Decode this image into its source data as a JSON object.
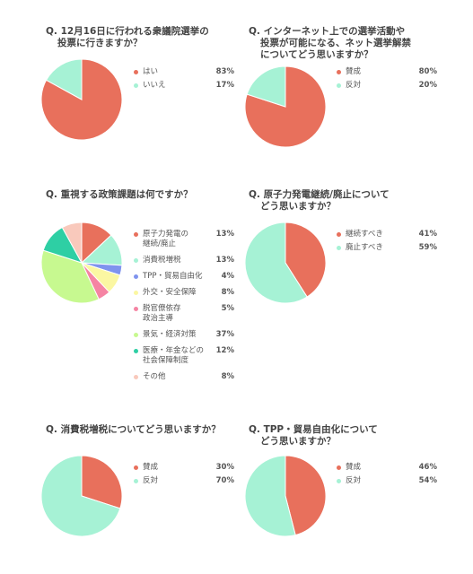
{
  "colors": {
    "red": "#e8705c",
    "mint": "#a6f2d5",
    "blue": "#7f93ee",
    "yellow": "#fbf7a2",
    "pink": "#f584a3",
    "lime": "#c7f990",
    "teal": "#2ecfa4",
    "peach": "#f9c9bc"
  },
  "chart_data": [
    {
      "type": "pie",
      "title_lines": [
        "Q. 12月16日に行われる衆議院選挙の",
        "投票に行きますか？"
      ],
      "slices": [
        {
          "label_lines": [
            "はい"
          ],
          "value": 83,
          "display": "83%",
          "color": "red"
        },
        {
          "label_lines": [
            "いいえ"
          ],
          "value": 17,
          "display": "17%",
          "color": "mint"
        }
      ]
    },
    {
      "type": "pie",
      "title_lines": [
        "Q. インターネット上での選挙活動や",
        "投票が可能になる、ネット選挙解禁",
        "についてどう思いますか？"
      ],
      "slices": [
        {
          "label_lines": [
            "賛成"
          ],
          "value": 80,
          "display": "80%",
          "color": "red"
        },
        {
          "label_lines": [
            "反対"
          ],
          "value": 20,
          "display": "20%",
          "color": "mint"
        }
      ]
    },
    {
      "type": "pie",
      "title_lines": [
        "Q. 重視する政策課題は何ですか？"
      ],
      "slices": [
        {
          "label_lines": [
            "原子力発電の",
            "継続/廃止"
          ],
          "value": 13,
          "display": "13%",
          "color": "red"
        },
        {
          "label_lines": [
            "消費税増税"
          ],
          "value": 13,
          "display": "13%",
          "color": "mint"
        },
        {
          "label_lines": [
            "TPP・貿易自由化"
          ],
          "value": 4,
          "display": "4%",
          "color": "blue"
        },
        {
          "label_lines": [
            "外交・安全保障"
          ],
          "value": 8,
          "display": "8%",
          "color": "yellow"
        },
        {
          "label_lines": [
            "脱官僚依存",
            "政治主導"
          ],
          "value": 5,
          "display": "5%",
          "color": "pink"
        },
        {
          "label_lines": [
            "景気・経済対策"
          ],
          "value": 37,
          "display": "37%",
          "color": "lime"
        },
        {
          "label_lines": [
            "医療・年金などの",
            "社会保障制度"
          ],
          "value": 12,
          "display": "12%",
          "color": "teal"
        },
        {
          "label_lines": [
            "その他"
          ],
          "value": 8,
          "display": "8%",
          "color": "peach"
        }
      ]
    },
    {
      "type": "pie",
      "title_lines": [
        "Q. 原子力発電継続/廃止について",
        "どう思いますか？"
      ],
      "slices": [
        {
          "label_lines": [
            "継続すべき"
          ],
          "value": 41,
          "display": "41%",
          "color": "red"
        },
        {
          "label_lines": [
            "廃止すべき"
          ],
          "value": 59,
          "display": "59%",
          "color": "mint"
        }
      ]
    },
    {
      "type": "pie",
      "title_lines": [
        "Q. 消費税増税についてどう思いますか？"
      ],
      "slices": [
        {
          "label_lines": [
            "賛成"
          ],
          "value": 30,
          "display": "30%",
          "color": "red"
        },
        {
          "label_lines": [
            "反対"
          ],
          "value": 70,
          "display": "70%",
          "color": "mint"
        }
      ]
    },
    {
      "type": "pie",
      "title_lines": [
        "Q. TPP・貿易自由化について",
        "どう思いますか？"
      ],
      "slices": [
        {
          "label_lines": [
            "賛成"
          ],
          "value": 46,
          "display": "46%",
          "color": "red"
        },
        {
          "label_lines": [
            "反対"
          ],
          "value": 54,
          "display": "54%",
          "color": "mint"
        }
      ]
    }
  ]
}
